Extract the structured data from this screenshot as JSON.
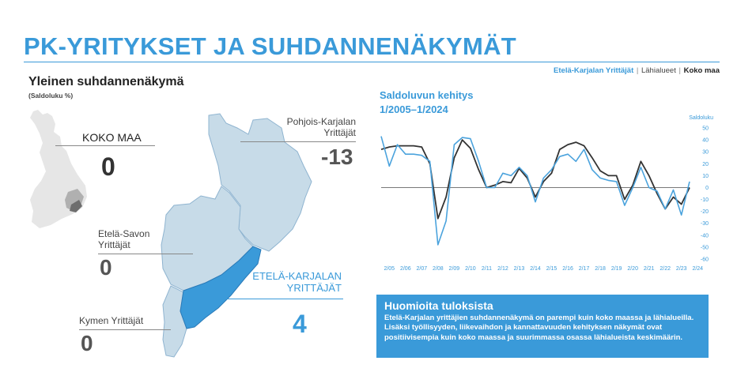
{
  "page": {
    "title": "PK-YRITYKSET JA SUHDANNENÄKYMÄT"
  },
  "nav": {
    "item1": "Etelä-Karjalan Yrittäjät",
    "sep1": "|",
    "item2": "Lähialueet",
    "sep2": "|",
    "item3": "Koko maa"
  },
  "overview": {
    "title": "Yleinen suhdannenäkymä",
    "subtitle": "(Saldoluku %)"
  },
  "regions": {
    "koko_maa": {
      "label": "KOKO MAA",
      "value": "0"
    },
    "pohjois": {
      "label1": "Pohjois-Karjalan",
      "label2": "Yrittäjät",
      "value": "-13"
    },
    "etela_savo": {
      "label1": "Etelä-Savon",
      "label2": "Yrittäjät",
      "value": "0"
    },
    "etela_karjala": {
      "label1": "ETELÄ-KARJALAN",
      "label2": "YRITTÄJÄT",
      "value": "4"
    },
    "kymi": {
      "label": "Kymen Yrittäjät",
      "value": "0"
    }
  },
  "colors": {
    "accent": "#3a9ad9",
    "map_light": "#c7dbe8",
    "map_dark": "#3a9ad9",
    "finland_gray": "#e6e6e6",
    "series_dark": "#333333",
    "series_light": "#4ba3dd"
  },
  "chart": {
    "title1": "Saldoluvun kehitys",
    "title2": "1/2005–1/2024"
  },
  "chart_data": {
    "type": "line",
    "ylabel": "Saldoluku",
    "ylim": [
      -60,
      50
    ],
    "yticks": [
      50,
      40,
      30,
      20,
      10,
      0,
      -10,
      -20,
      -30,
      -40,
      -50,
      -60
    ],
    "x_tick_labels": [
      "2/05",
      "2/06",
      "2/07",
      "2/08",
      "2/09",
      "2/10",
      "2/11",
      "2/12",
      "2/13",
      "2/14",
      "2/15",
      "2/16",
      "2/17",
      "2/18",
      "2/19",
      "2/20",
      "2/21",
      "2/22",
      "2/23",
      "2/24"
    ],
    "x": [
      2005.0,
      2005.5,
      2006.0,
      2006.5,
      2007.0,
      2007.5,
      2008.0,
      2008.5,
      2009.0,
      2009.5,
      2010.0,
      2010.5,
      2011.0,
      2011.5,
      2012.0,
      2012.5,
      2013.0,
      2013.5,
      2014.0,
      2014.5,
      2015.0,
      2015.5,
      2016.0,
      2016.5,
      2017.0,
      2017.5,
      2018.0,
      2018.5,
      2019.0,
      2019.5,
      2020.0,
      2020.5,
      2021.0,
      2021.5,
      2022.0,
      2022.5,
      2023.0,
      2023.5,
      2024.0
    ],
    "series": [
      {
        "values": [
          32,
          34,
          35,
          35,
          35,
          34,
          20,
          -26,
          -8,
          25,
          40,
          33,
          15,
          0,
          2,
          5,
          4,
          16,
          8,
          -8,
          5,
          12,
          32,
          36,
          38,
          35,
          25,
          14,
          10,
          10,
          -10,
          2,
          22,
          10,
          -5,
          -18,
          -8,
          -14,
          0
        ]
      },
      {
        "values": [
          43,
          18,
          36,
          28,
          28,
          27,
          22,
          -48,
          -28,
          36,
          42,
          41,
          22,
          0,
          0,
          12,
          10,
          17,
          10,
          -12,
          8,
          15,
          26,
          28,
          22,
          32,
          15,
          8,
          6,
          5,
          -15,
          0,
          17,
          0,
          -3,
          -18,
          -2,
          -23,
          5
        ]
      }
    ]
  },
  "note": {
    "title": "Huomioita tuloksista",
    "text": "Etelä-Karjalan yrittäjien suhdannenäkymä on parempi kuin koko maassa ja lähialueilla. Lisäksi työllisyyden, liikevaihdon ja kannattavuuden kehityksen näkymät ovat positiivisempia kuin koko maassa ja suurimmassa osassa lähialueista keskimäärin."
  }
}
